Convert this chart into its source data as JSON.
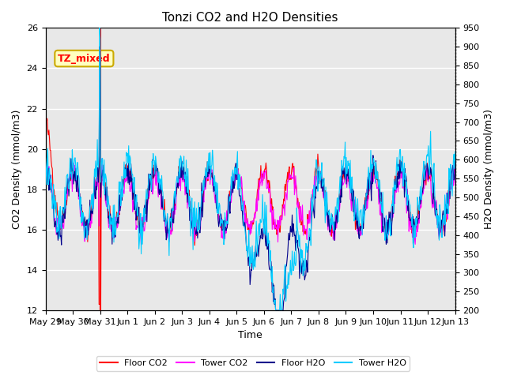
{
  "title": "Tonzi CO2 and H2O Densities",
  "xlabel": "Time",
  "ylabel_left": "CO2 Density (mmol/m3)",
  "ylabel_right": "H2O Density (mmol/m3)",
  "ylim_left": [
    12,
    26
  ],
  "ylim_right": [
    200,
    950
  ],
  "yticks_left": [
    12,
    14,
    16,
    18,
    20,
    22,
    24,
    26
  ],
  "yticks_right": [
    200,
    250,
    300,
    350,
    400,
    450,
    500,
    550,
    600,
    650,
    700,
    750,
    800,
    850,
    900,
    950
  ],
  "xtick_labels": [
    "May 29",
    "May 30",
    "May 31",
    "Jun 1",
    "Jun 2",
    "Jun 3",
    "Jun 4",
    "Jun 5",
    "Jun 6",
    "Jun 7",
    "Jun 8",
    "Jun 9",
    "Jun 10",
    "Jun 11",
    "Jun 12",
    "Jun 13"
  ],
  "annotation_text": "TZ_mixed",
  "colors": {
    "floor_co2": "#ff0000",
    "tower_co2": "#ff00ff",
    "floor_h2o": "#00008b",
    "tower_h2o": "#00ccff"
  },
  "vline_color": "#ff0000",
  "bg_color": "#e8e8e8",
  "grid_color": "#ffffff",
  "title_fontsize": 11,
  "label_fontsize": 9,
  "tick_fontsize": 8,
  "legend_fontsize": 8
}
